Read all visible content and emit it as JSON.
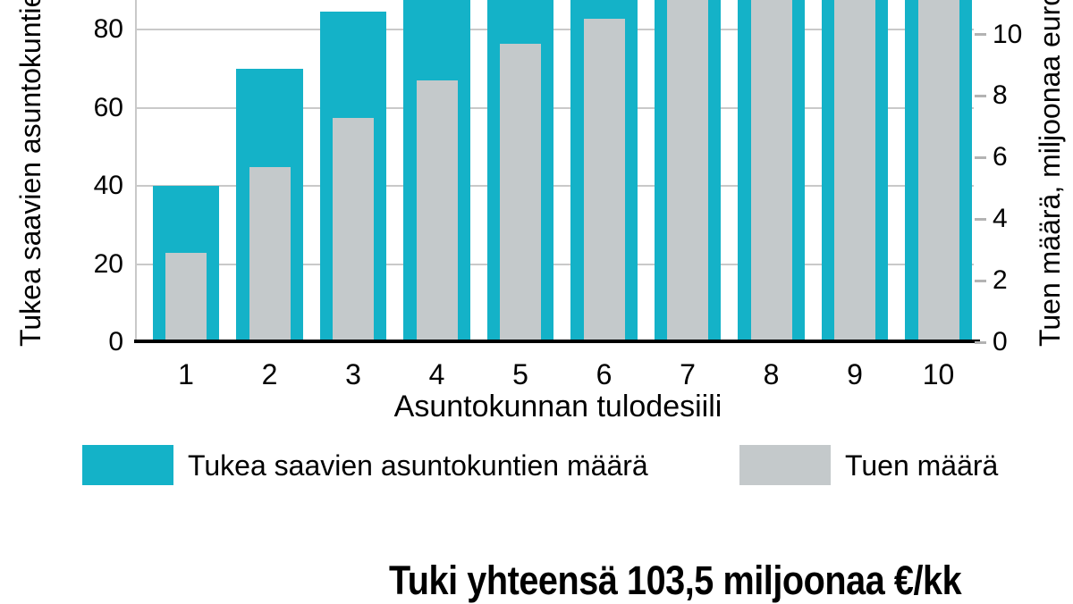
{
  "chart": {
    "x_axis": {
      "title": "Asuntokunnan tulodesiili"
    },
    "left_axis": {
      "title_visible": "Tukea saavien asuntokuntie"
    },
    "right_axis": {
      "title_visible": "Tuen määrä, miljoonaa euro"
    },
    "footer": "Tuki yhteensä 103,5 miljoonaa €/kk",
    "colors": {
      "teal": "#14b2c8",
      "gray": "#c4c9cb",
      "gridline": "#c9c9c9",
      "axis_line": "#000000"
    }
  },
  "chart_data": {
    "type": "bar",
    "title": "",
    "xlabel": "Asuntokunnan tulodesiili",
    "categories": [
      "1",
      "2",
      "3",
      "4",
      "5",
      "6",
      "7",
      "8",
      "9",
      "10"
    ],
    "left_axis": {
      "label_visible": "Tukea saavien asuntokuntie",
      "ticks_visible": [
        0,
        20,
        40,
        60,
        80
      ],
      "ylim_visible": [
        0,
        87.5
      ]
    },
    "right_axis": {
      "label_visible": "Tuen määrä, miljoonaa euro",
      "ticks_visible": [
        0,
        2,
        4,
        6,
        8,
        10
      ],
      "ylim_visible": [
        0,
        11.1
      ]
    },
    "series": [
      {
        "name": "Tukea saavien asuntokuntien määrä",
        "axis": "left",
        "color": "#14b2c8",
        "values": [
          40,
          70,
          84.5,
          null,
          null,
          null,
          null,
          null,
          null,
          null
        ],
        "clipped_above_top": [
          false,
          false,
          false,
          true,
          true,
          true,
          true,
          true,
          true,
          true
        ]
      },
      {
        "name": "Tuen määrä",
        "axis": "right",
        "color": "#c4c9cb",
        "values": [
          2.9,
          5.7,
          7.3,
          8.5,
          9.7,
          10.5,
          null,
          null,
          null,
          null
        ],
        "clipped_above_top": [
          false,
          false,
          false,
          false,
          false,
          false,
          true,
          true,
          true,
          true
        ]
      }
    ],
    "legend": [
      {
        "label": "Tukea saavien asuntokuntien määrä",
        "color": "#14b2c8"
      },
      {
        "label": "Tuen määrä",
        "color": "#c4c9cb"
      }
    ],
    "footer_annotation": "Tuki yhteensä 103,5 miljoonaa €/kk",
    "layout_note": "Image is cropped at the top: values above ~87.5 (left axis) / ~11.1 (right axis) run past the top edge"
  }
}
